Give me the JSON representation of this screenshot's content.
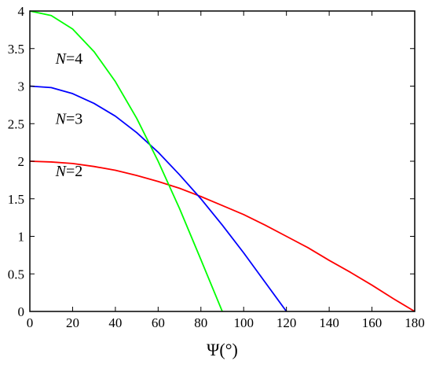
{
  "chart_data": {
    "type": "line",
    "xlabel": "Ψ(°)",
    "ylabel": "",
    "title": "",
    "xlim": [
      0,
      180
    ],
    "ylim": [
      0,
      4
    ],
    "xticks": [
      "0",
      "20",
      "40",
      "60",
      "80",
      "100",
      "120",
      "140",
      "160",
      "180"
    ],
    "yticks": [
      "0",
      "0.5",
      "1",
      "1.5",
      "2",
      "2.5",
      "3",
      "3.5",
      "4"
    ],
    "grid": false,
    "series": [
      {
        "name": "N=2",
        "color": "#ff0000",
        "x": [
          0,
          10,
          20,
          30,
          40,
          50,
          60,
          70,
          80,
          90,
          100,
          110,
          120,
          130,
          140,
          150,
          160,
          170,
          180
        ],
        "y": [
          2.0,
          1.99,
          1.97,
          1.93,
          1.88,
          1.81,
          1.73,
          1.64,
          1.53,
          1.41,
          1.29,
          1.15,
          1.0,
          0.85,
          0.68,
          0.52,
          0.35,
          0.17,
          0.0
        ]
      },
      {
        "name": "N=3",
        "color": "#0000ff",
        "x": [
          0,
          10,
          20,
          30,
          40,
          50,
          60,
          70,
          80,
          90,
          100,
          110,
          120
        ],
        "y": [
          3.0,
          2.98,
          2.9,
          2.77,
          2.6,
          2.38,
          2.12,
          1.82,
          1.5,
          1.15,
          0.78,
          0.39,
          0.0
        ]
      },
      {
        "name": "N=4",
        "color": "#00ff00",
        "x": [
          0,
          10,
          20,
          30,
          40,
          50,
          60,
          70,
          80,
          90
        ],
        "y": [
          4.0,
          3.94,
          3.76,
          3.46,
          3.06,
          2.57,
          2.0,
          1.37,
          0.69,
          0.0
        ]
      }
    ],
    "curve_labels": [
      {
        "prefix": "N",
        "suffix": "=4",
        "x": 12,
        "y": 3.3
      },
      {
        "prefix": "N",
        "suffix": "=3",
        "x": 12,
        "y": 2.5
      },
      {
        "prefix": "N",
        "suffix": "=2",
        "x": 12,
        "y": 1.8
      }
    ]
  }
}
